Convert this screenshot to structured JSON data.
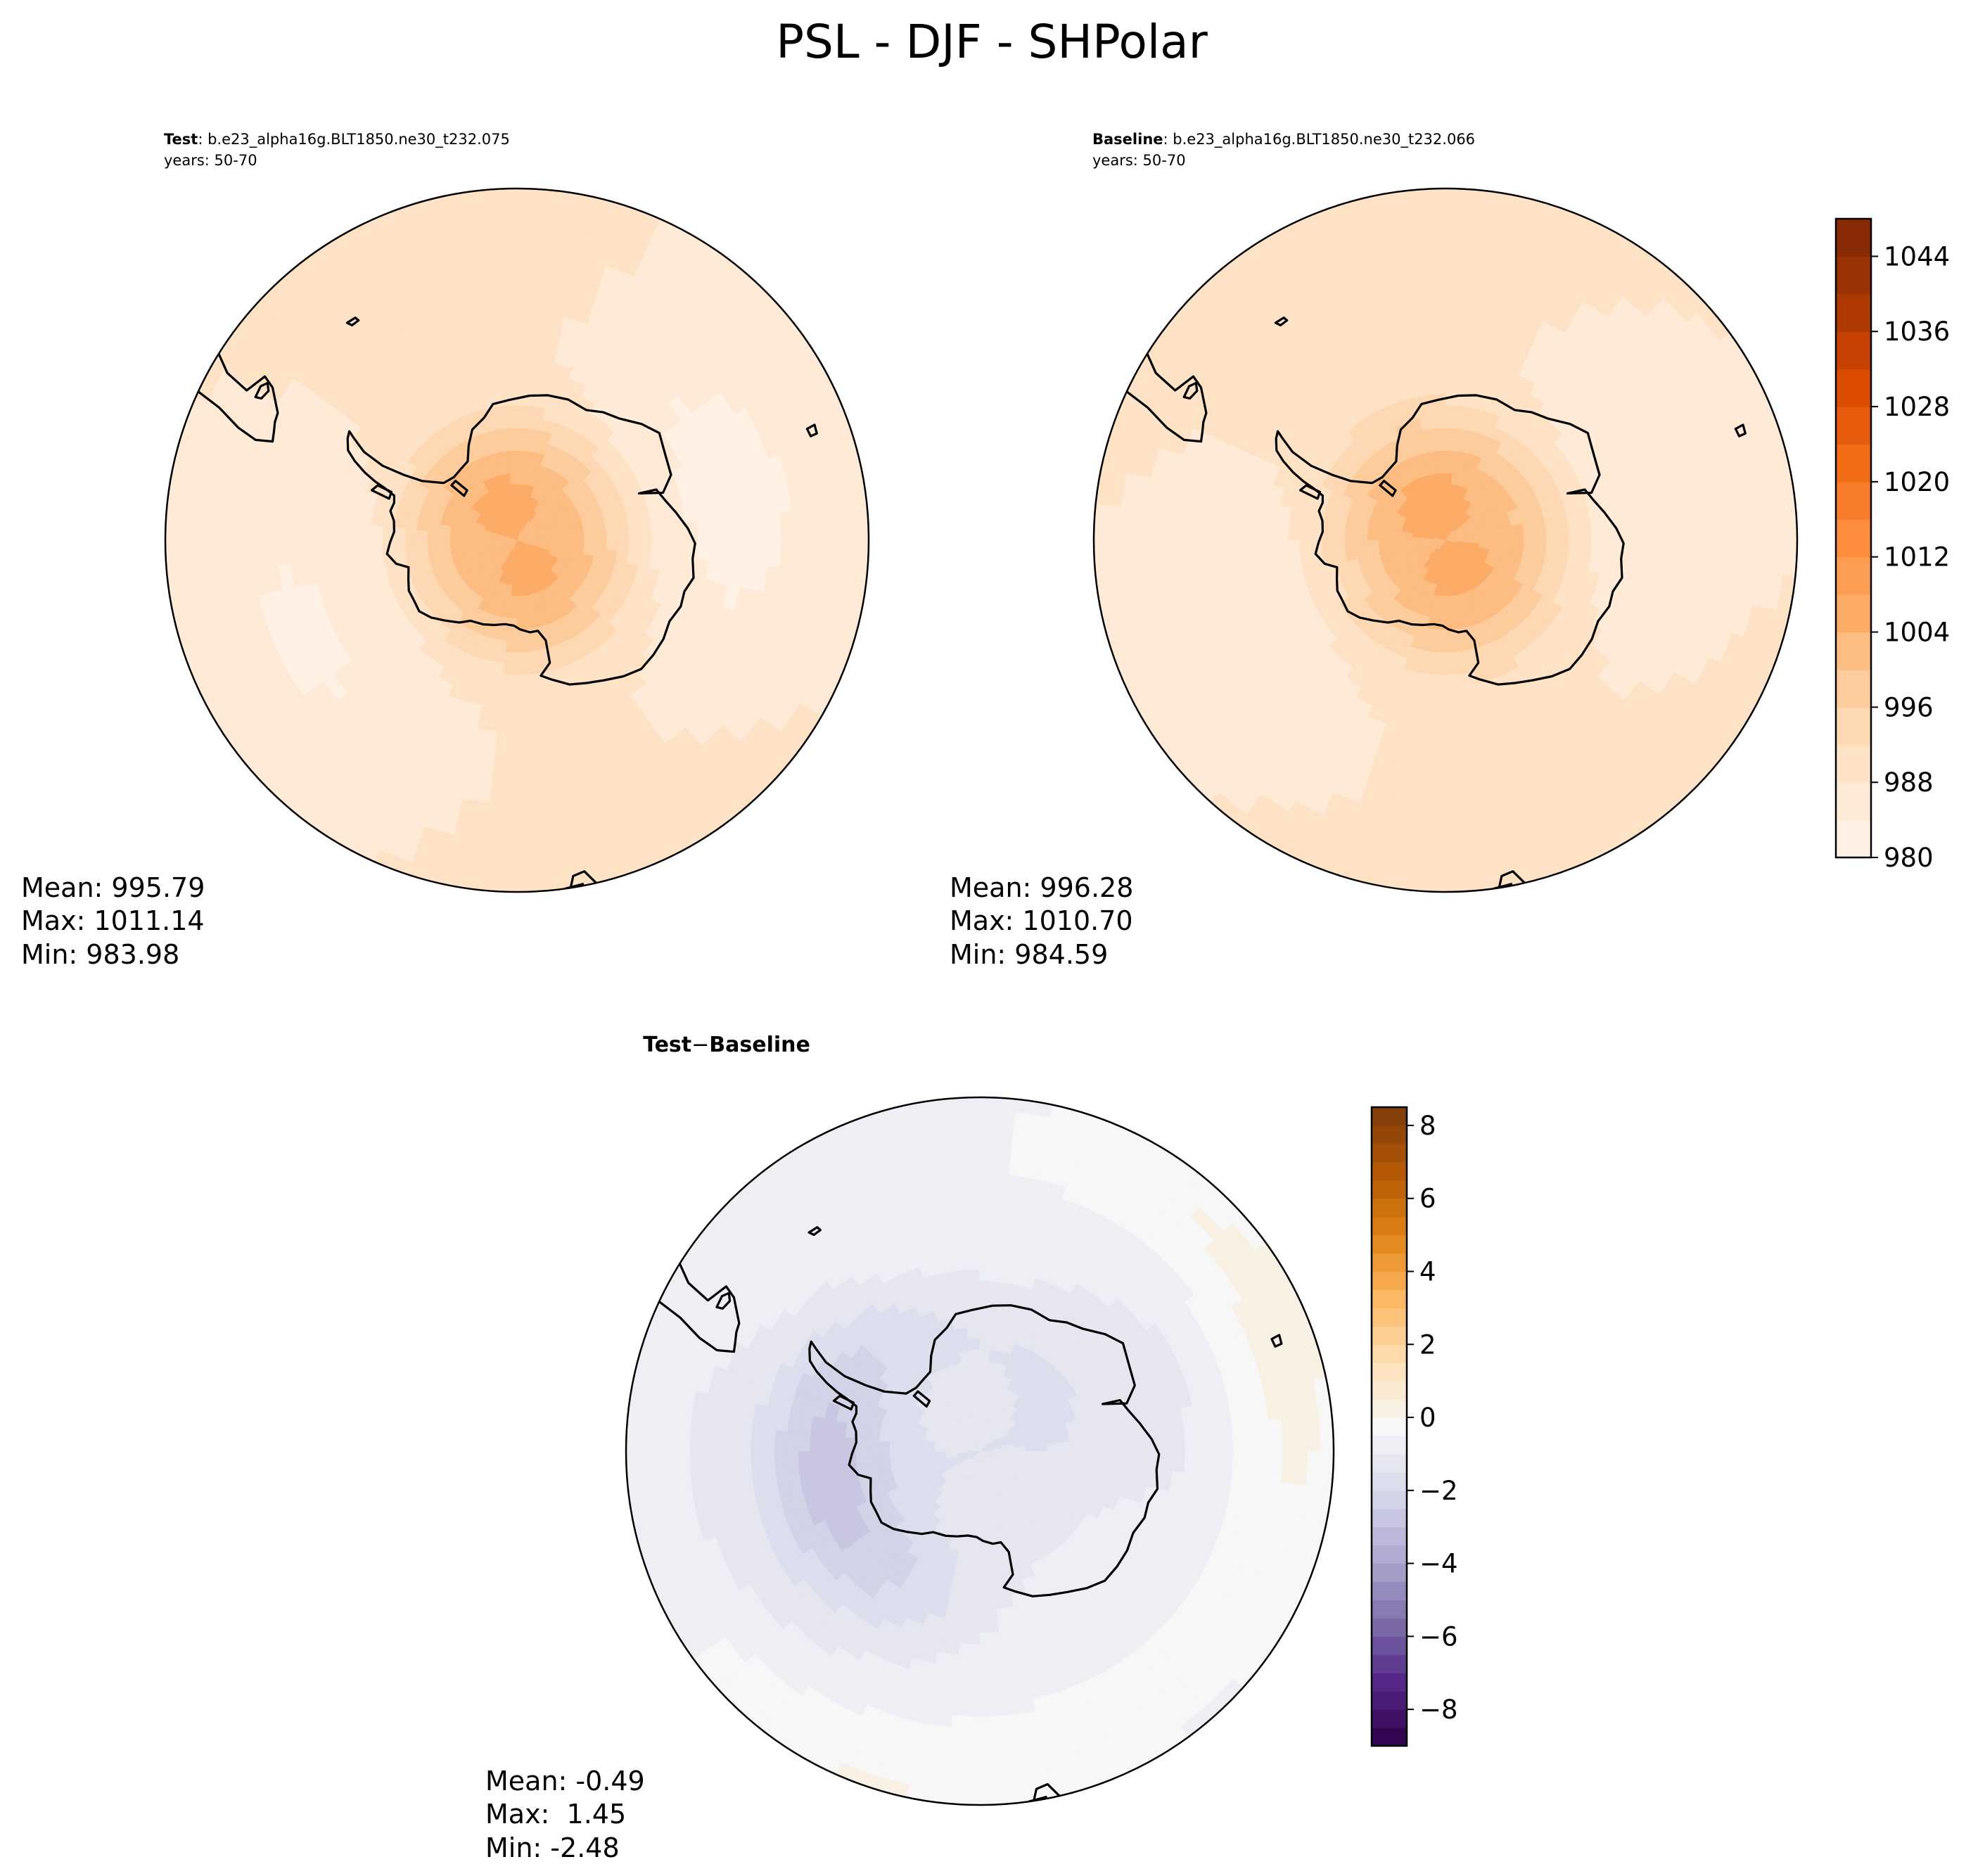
{
  "suptitle": "PSL - DJF - SHPolar",
  "chart_data": [
    {
      "type": "heatmap",
      "projection": "south-polar-stereographic",
      "label_bold": "Test",
      "label_rest": ": b.e23_alpha16g.BLT1850.ne30_t232.075",
      "years": "years: 50-70",
      "stats": [
        "Mean: 995.79",
        "Max: 1011.14",
        "Min: 983.98"
      ],
      "colormap": "Oranges",
      "levels": [
        980,
        984,
        988,
        992,
        996,
        1000,
        1004,
        1008,
        1012,
        1016,
        1020,
        1024,
        1028,
        1032,
        1036,
        1040,
        1044,
        1048
      ],
      "field": {
        "pole_value": 1003,
        "shelf_value": 988,
        "outer_value": 1009,
        "outer_lat": -45,
        "wave_amplitude": 2.5,
        "local_features": [
          {
            "lon": 90,
            "lat": -60,
            "delta": -3.5
          },
          {
            "lon": -120,
            "lat": -58,
            "delta": -2.5
          },
          {
            "lon": 0,
            "lat": -82,
            "delta": 1.5
          }
        ]
      }
    },
    {
      "type": "heatmap",
      "projection": "south-polar-stereographic",
      "label_bold": "Baseline",
      "label_rest": ": b.e23_alpha16g.BLT1850.ne30_t232.066",
      "years": "years: 50-70",
      "stats": [
        "Mean: 996.28",
        "Max: 1010.70",
        "Min: 984.59"
      ],
      "colormap": "Oranges",
      "levels": [
        980,
        984,
        988,
        992,
        996,
        1000,
        1004,
        1008,
        1012,
        1016,
        1020,
        1024,
        1028,
        1032,
        1036,
        1040,
        1044,
        1048
      ],
      "field": {
        "pole_value": 1003.5,
        "shelf_value": 989,
        "outer_value": 1009,
        "outer_lat": -45,
        "wave_amplitude": 2.2,
        "local_features": [
          {
            "lon": 90,
            "lat": -60,
            "delta": -2.8
          },
          {
            "lon": -120,
            "lat": -58,
            "delta": -2.5
          },
          {
            "lon": 20,
            "lat": -82,
            "delta": 1.5
          }
        ]
      }
    },
    {
      "type": "heatmap",
      "projection": "south-polar-stereographic",
      "label_bold": "Test",
      "label_minus": "−",
      "label_bold2": "Baseline",
      "stats": [
        "Mean: -0.49",
        "Max:  1.45",
        "Min: -2.48"
      ],
      "colormap": "PuOr_r",
      "levels": [
        -9,
        -8.5,
        -8,
        -7.5,
        -7,
        -6.5,
        -6,
        -5.5,
        -5,
        -4.5,
        -4,
        -3.5,
        -3,
        -2.5,
        -2,
        -1.5,
        -1,
        -0.5,
        0,
        0.5,
        1,
        1.5,
        2,
        2.5,
        3,
        3.5,
        4,
        4.5,
        5,
        5.5,
        6,
        6.5,
        7,
        7.5,
        8,
        8.5
      ],
      "colorbar_ticks": [
        -8,
        -6,
        -4,
        -2,
        0,
        2,
        4,
        6,
        8
      ],
      "field": {
        "pole_value": -1.3,
        "shelf_value": -0.9,
        "outer_value": 0.2,
        "outer_lat": -45,
        "wave_amplitude": 0.3,
        "local_features": [
          {
            "lon": -95,
            "lat": -70,
            "delta": -1.6
          },
          {
            "lon": 10,
            "lat": -80,
            "delta": -0.4
          },
          {
            "lon": -155,
            "lat": -45,
            "delta": 0.9
          },
          {
            "lon": 55,
            "lat": -48,
            "delta": 0.9
          },
          {
            "lon": 95,
            "lat": -50,
            "delta": 0.6
          }
        ]
      }
    }
  ],
  "colorbar_top": {
    "ticks": [
      "1044",
      "1036",
      "1028",
      "1020",
      "1012",
      "1004",
      "996",
      "988",
      "980"
    ]
  },
  "colorbar_bottom": {
    "ticks": [
      "8",
      "6",
      "4",
      "2",
      "0",
      "−2",
      "−4",
      "−6",
      "−8"
    ]
  },
  "colors": {
    "oranges": [
      "#fff5eb",
      "#fee6ce",
      "#fdd0a2",
      "#fdae6b",
      "#fd8d3c",
      "#f16913",
      "#d94801",
      "#a63603",
      "#7f2704"
    ],
    "puor_r": [
      "#2d004b",
      "#542788",
      "#8073ac",
      "#b2abd2",
      "#d8daeb",
      "#f7f7f7",
      "#fee0b6",
      "#fdb863",
      "#e08214",
      "#b35806",
      "#7f3b08"
    ],
    "coastline": "#000000"
  }
}
